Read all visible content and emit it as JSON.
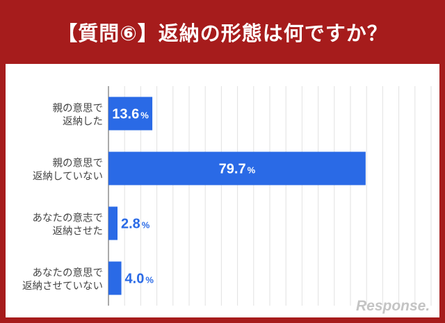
{
  "header": {
    "title": "【質問⑥】返納の形態は何ですか？"
  },
  "watermark": {
    "text": "Response."
  },
  "colors": {
    "background": "#a61c1c",
    "bar": "#2a6ae6",
    "bar_label_inside": "#ffffff",
    "bar_label_outside": "#2a6ae6",
    "grid": "#e2e2e2"
  },
  "chart_data": {
    "type": "bar",
    "orientation": "horizontal",
    "categories": [
      [
        "親の意思で",
        "返納した"
      ],
      [
        "親の意思で",
        "返納していない"
      ],
      [
        "あなたの意志で",
        "返納させた"
      ],
      [
        "あなたの意思で",
        "返納させていない"
      ]
    ],
    "values": [
      13.6,
      79.7,
      2.8,
      4.0
    ],
    "value_labels": [
      "13.6",
      "79.7",
      "2.8",
      "4.0"
    ],
    "unit": "%",
    "xlim": [
      0,
      100
    ],
    "grid": true,
    "legend": "none"
  }
}
